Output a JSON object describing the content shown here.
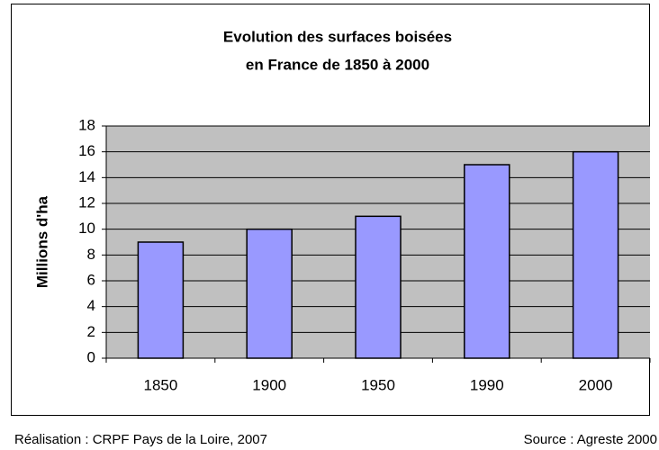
{
  "chart_data": {
    "type": "bar",
    "title": [
      "Evolution des surfaces boisées",
      "en France de 1850 à 2000"
    ],
    "ylabel": "Millions d'ha",
    "categories": [
      "1850",
      "1900",
      "1950",
      "1990",
      "2000"
    ],
    "values": [
      9,
      10,
      11,
      15,
      16
    ],
    "color": "#9999ff",
    "ylim": [
      0,
      18
    ],
    "yticks": [
      0,
      2,
      4,
      6,
      8,
      10,
      12,
      14,
      16,
      18
    ],
    "grid": true,
    "credits": [
      "Réalisation : CRPF Pays de la Loire, 2007",
      "Source : Agreste 2000"
    ]
  }
}
